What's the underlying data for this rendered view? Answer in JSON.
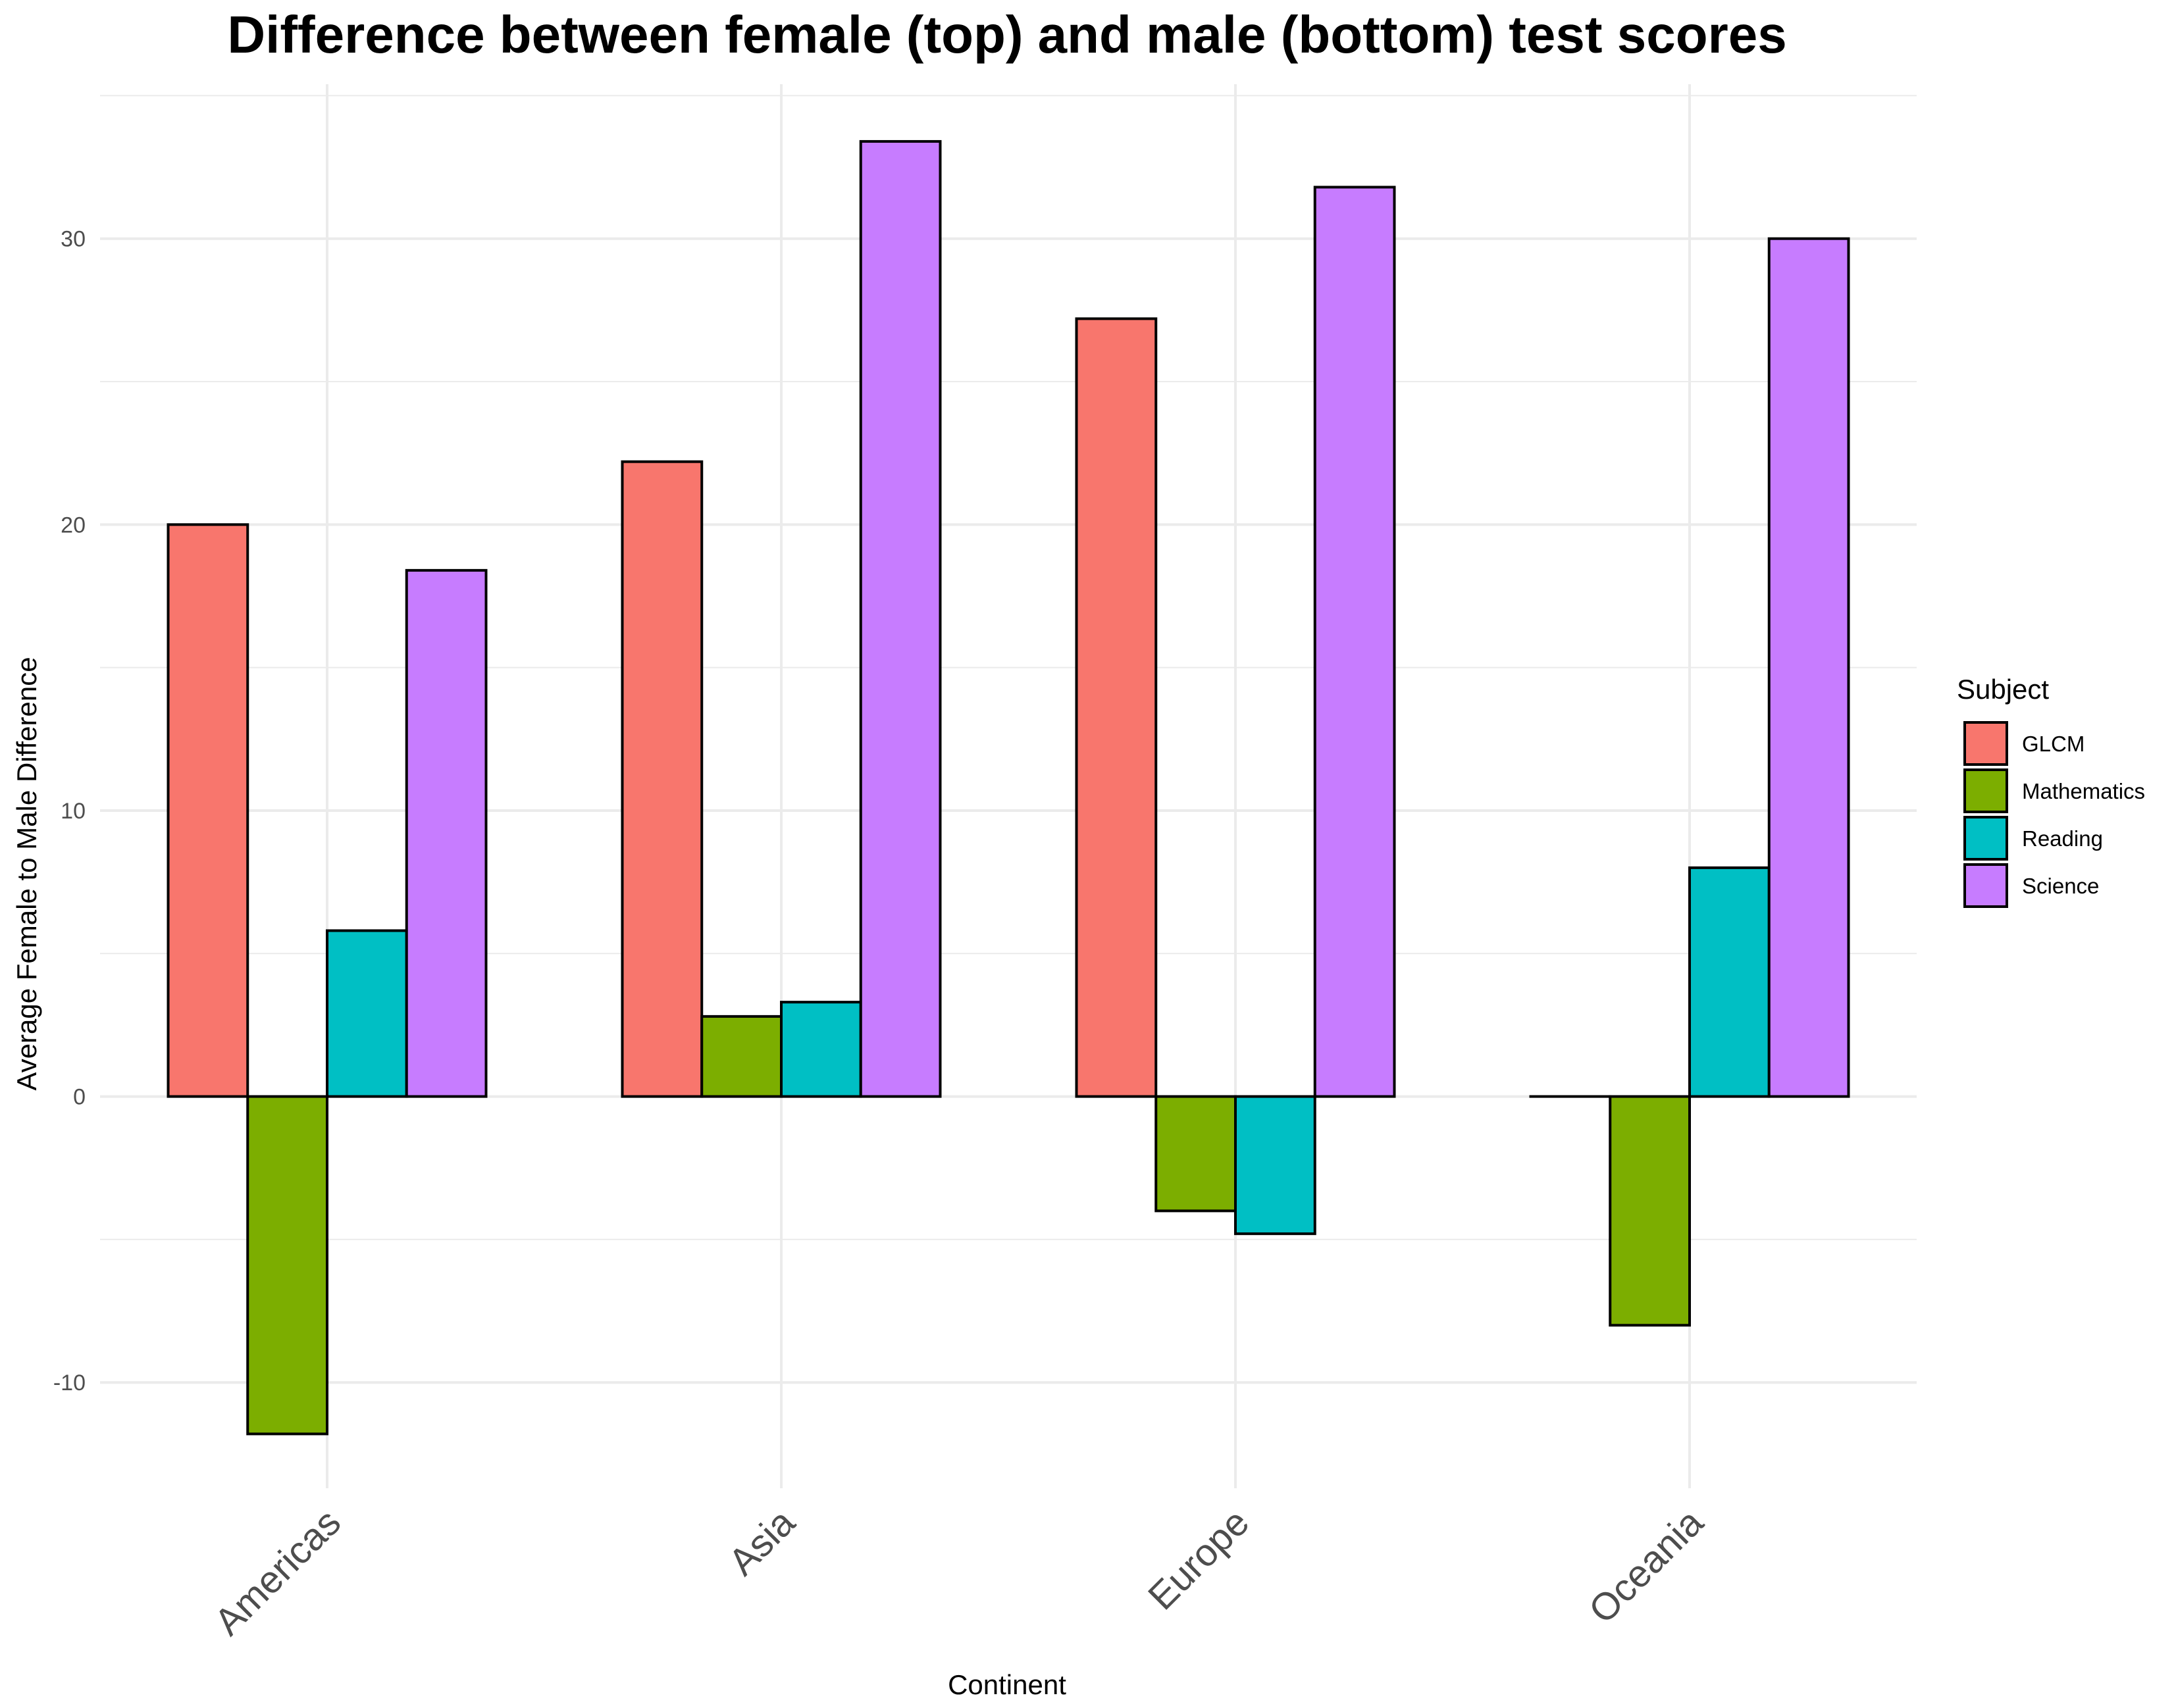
{
  "chart_data": {
    "type": "bar",
    "title": "Difference between female (top) and male (bottom) test scores",
    "xlabel": "Continent",
    "ylabel": "Average Female to Male Difference",
    "categories": [
      "Americas",
      "Asia",
      "Europe",
      "Oceania"
    ],
    "series": [
      {
        "name": "GLCM",
        "color": "#F8766D",
        "values": [
          20,
          22.2,
          27.2,
          0
        ]
      },
      {
        "name": "Mathematics",
        "color": "#7CAE00",
        "values": [
          -11.8,
          2.8,
          -4,
          -8
        ]
      },
      {
        "name": "Reading",
        "color": "#00BFC4",
        "values": [
          5.8,
          3.3,
          -4.8,
          8
        ]
      },
      {
        "name": "Science",
        "color": "#C77CFF",
        "values": [
          18.4,
          33.4,
          31.8,
          30
        ]
      }
    ],
    "y_ticks": [
      -10,
      0,
      10,
      20,
      30
    ],
    "ylim": [
      -13.7,
      35.4
    ],
    "grid": true,
    "legend": {
      "title": "Subject",
      "position": "right"
    }
  }
}
